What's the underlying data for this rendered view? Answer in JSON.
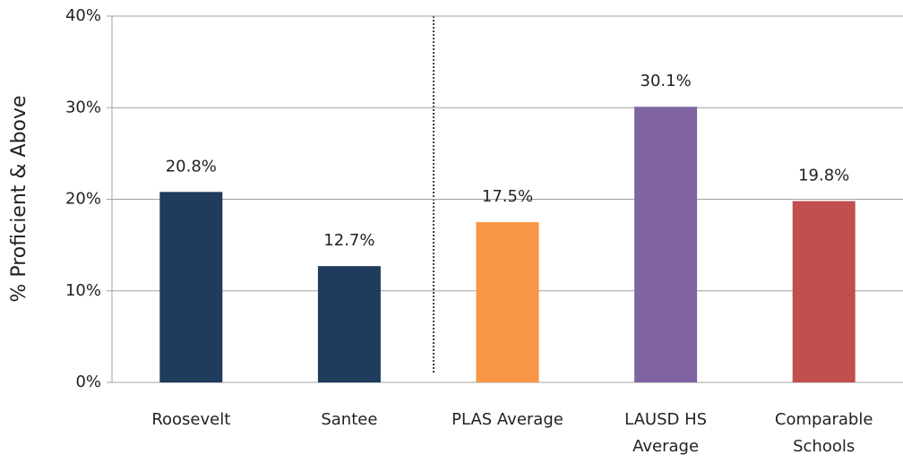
{
  "chart_data": {
    "type": "bar",
    "y_label": "% Proficient & Above",
    "categories": [
      "Roosevelt",
      "Santee",
      "PLAS Average",
      "LAUSD HS Average",
      "Comparable Schools"
    ],
    "values": [
      20.8,
      12.7,
      17.5,
      30.1,
      19.8
    ],
    "value_labels": [
      "20.8%",
      "12.7%",
      "17.5%",
      "30.1%",
      "19.8%"
    ],
    "colors": [
      "#1f3b5e",
      "#1f3b5e",
      "#f79646",
      "#8064a2",
      "#c0504d"
    ],
    "ylim": [
      0,
      40
    ],
    "yticks": [
      {
        "value": 0,
        "label": "0%"
      },
      {
        "value": 10,
        "label": "10%"
      },
      {
        "value": 20,
        "label": "20%"
      },
      {
        "value": 30,
        "label": "30%"
      },
      {
        "value": 40,
        "label": "40%"
      }
    ],
    "grid": true
  }
}
